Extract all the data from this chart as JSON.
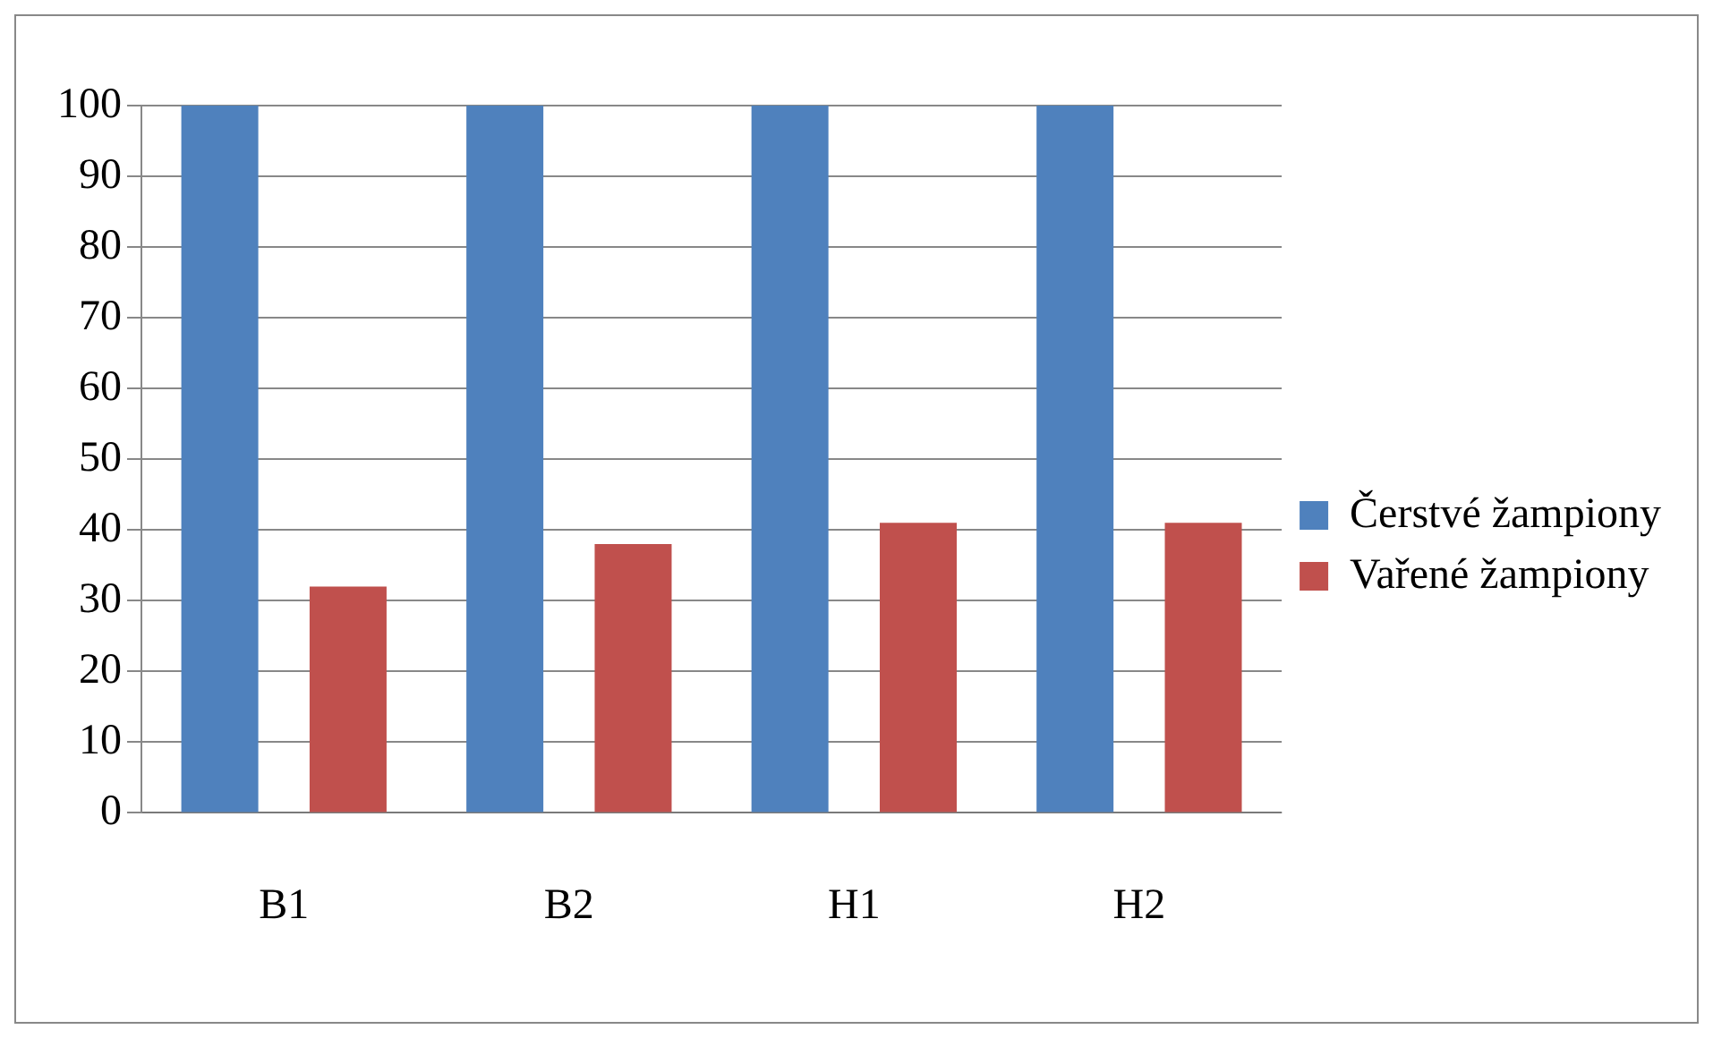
{
  "chart_data": {
    "type": "bar",
    "categories": [
      "B1",
      "B2",
      "H1",
      "H2"
    ],
    "series": [
      {
        "name": "Čerstvé žampiony",
        "color": "#4f81bd",
        "values": [
          100,
          100,
          100,
          100
        ]
      },
      {
        "name": "Vařené žampiony",
        "color": "#c0504d",
        "values": [
          32,
          38,
          41,
          41
        ]
      }
    ],
    "ylim": [
      0,
      100
    ],
    "yticks": [
      0,
      10,
      20,
      30,
      40,
      50,
      60,
      70,
      80,
      90,
      100
    ],
    "grid": "y",
    "legend": "right"
  }
}
